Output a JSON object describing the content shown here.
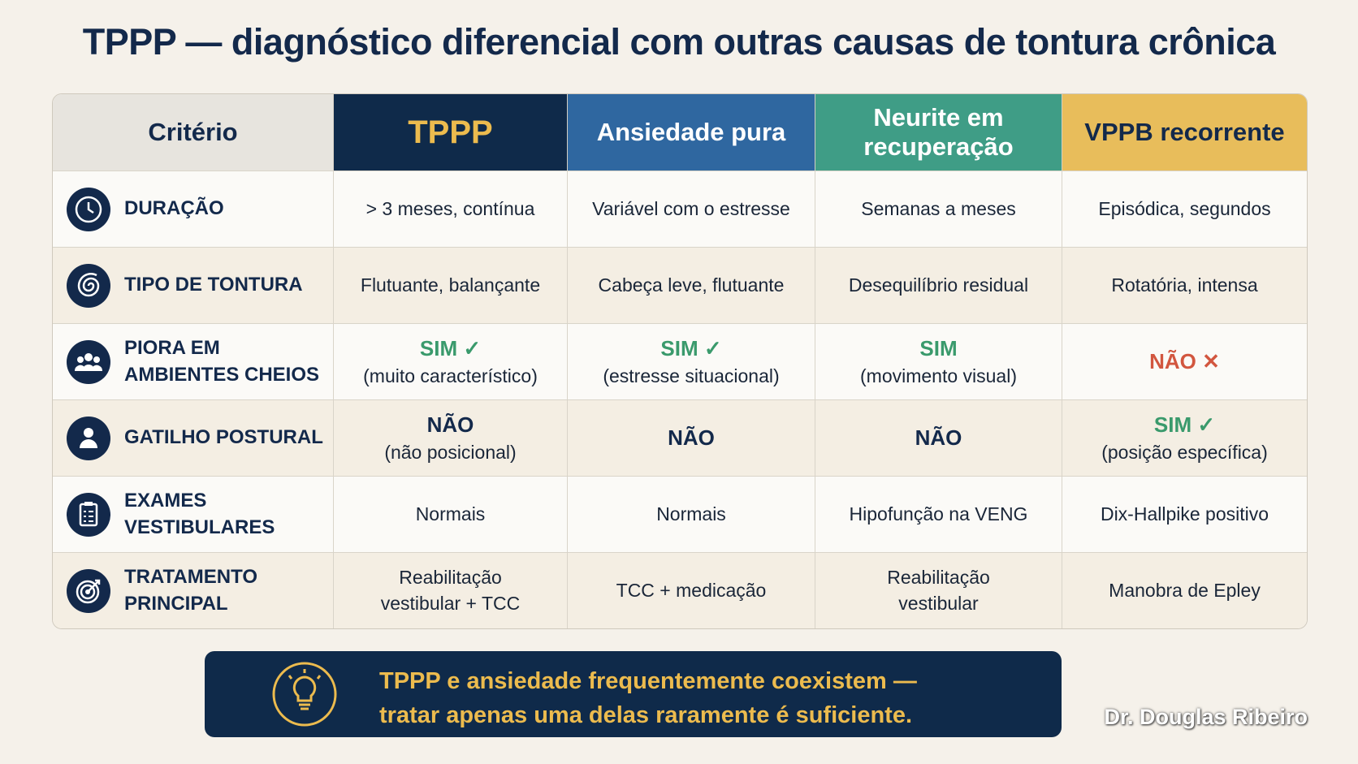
{
  "title": "TPPP — diagnóstico diferencial com outras causas de tontura crônica",
  "table": {
    "header": [
      {
        "text": [
          "Critério"
        ],
        "bg": "#e7e4de",
        "fg": "#13294b"
      },
      {
        "text": [
          "TPPP"
        ],
        "bg": "#0f2a4a",
        "fg": "#ecbb4e"
      },
      {
        "text": [
          "Ansiedade pura"
        ],
        "bg": "#2f67a0",
        "fg": "#ffffff"
      },
      {
        "text": [
          "Neurite em",
          "recuperação"
        ],
        "bg": "#3f9d86",
        "fg": "#ffffff"
      },
      {
        "text": [
          "VPPB recorrente"
        ],
        "bg": "#e8bd5b",
        "fg": "#13294b"
      }
    ],
    "rows": [
      {
        "label": [
          "DURAÇÃO"
        ],
        "icon": "clock",
        "cells": [
          {
            "text": [
              "> 3 meses, contínua"
            ]
          },
          {
            "text": [
              "Variável com o estresse"
            ]
          },
          {
            "text": [
              "Semanas a meses"
            ]
          },
          {
            "text": [
              "Episódica, segundos"
            ]
          }
        ]
      },
      {
        "label": [
          "TIPO DE TONTURA"
        ],
        "icon": "spiral",
        "cells": [
          {
            "text": [
              "Flutuante, balançante"
            ]
          },
          {
            "text": [
              "Cabeça leve, flutuante"
            ]
          },
          {
            "text": [
              "Desequilíbrio residual"
            ]
          },
          {
            "text": [
              "Rotatória, intensa"
            ]
          }
        ]
      },
      {
        "label": [
          "PIORA EM",
          "AMBIENTES CHEIOS"
        ],
        "icon": "people",
        "cells": [
          {
            "main": "SIM ✓",
            "color": "#3a9a6c",
            "sub": "(muito característico)"
          },
          {
            "main": "SIM ✓",
            "color": "#3a9a6c",
            "sub": "(estresse situacional)"
          },
          {
            "main": "SIM",
            "color": "#3a9a6c",
            "sub": "(movimento visual)"
          },
          {
            "main": "NÃO ✕",
            "color": "#d2563f"
          }
        ]
      },
      {
        "label": [
          "GATILHO POSTURAL"
        ],
        "icon": "person",
        "cells": [
          {
            "main": "NÃO",
            "color": "#13294b",
            "sub": "(não posicional)"
          },
          {
            "main": "NÃO",
            "color": "#13294b"
          },
          {
            "main": "NÃO",
            "color": "#13294b"
          },
          {
            "main": "SIM ✓",
            "color": "#3a9a6c",
            "sub": "(posição específica)"
          }
        ]
      },
      {
        "label": [
          "EXAMES VESTIBULARES"
        ],
        "icon": "clipboard",
        "cells": [
          {
            "text": [
              "Normais"
            ]
          },
          {
            "text": [
              "Normais"
            ]
          },
          {
            "text": [
              "Hipofunção na VENG"
            ]
          },
          {
            "text": [
              "Dix-Hallpike positivo"
            ]
          }
        ]
      },
      {
        "label": [
          "TRATAMENTO PRINCIPAL"
        ],
        "icon": "target",
        "cells": [
          {
            "text": [
              "Reabilitação",
              "vestibular + TCC"
            ]
          },
          {
            "text": [
              "TCC + medicação"
            ]
          },
          {
            "text": [
              "Reabilitação",
              "vestibular"
            ]
          },
          {
            "text": [
              "Manobra de Epley"
            ]
          }
        ]
      }
    ]
  },
  "note": [
    "TPPP e ansiedade frequentemente coexistem —",
    "tratar apenas uma delas raramente é suficiente."
  ],
  "watermark": "Dr. Douglas Ribeiro"
}
